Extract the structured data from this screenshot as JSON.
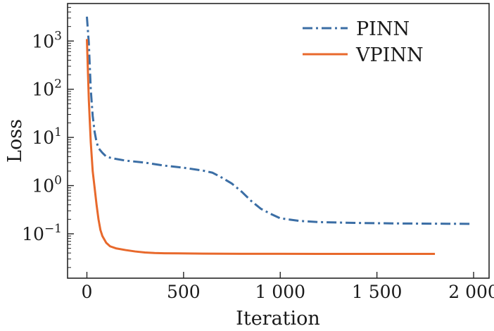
{
  "chart_data": {
    "type": "line",
    "xlabel": "Iteration",
    "ylabel": "Loss",
    "yscale": "log",
    "xlim": [
      -100,
      2080
    ],
    "ylim": [
      0.012,
      6000
    ],
    "grid": false,
    "legend_position": "top-right",
    "x_ticks": [
      {
        "value": 0,
        "label": "0"
      },
      {
        "value": 500,
        "label": "500"
      },
      {
        "value": 1000,
        "label": "1 000"
      },
      {
        "value": 1500,
        "label": "1 500"
      },
      {
        "value": 2000,
        "label": "2 000"
      }
    ],
    "y_ticks": [
      {
        "value": 0.1,
        "base": "10",
        "exp": "−1"
      },
      {
        "value": 1,
        "base": "10",
        "exp": "0"
      },
      {
        "value": 10,
        "base": "10",
        "exp": "1"
      },
      {
        "value": 100,
        "base": "10",
        "exp": "2"
      },
      {
        "value": 1000,
        "base": "10",
        "exp": "3"
      }
    ],
    "series": [
      {
        "name": "PINN",
        "color": "#3b6ea5",
        "style": "dashdot",
        "x": [
          0,
          10,
          20,
          30,
          40,
          50,
          60,
          80,
          100,
          130,
          200,
          300,
          400,
          500,
          600,
          650,
          700,
          750,
          800,
          850,
          900,
          950,
          1000,
          1100,
          1200,
          1400,
          1600,
          1800,
          1980
        ],
        "y": [
          3200,
          900,
          100,
          28,
          13,
          8,
          6,
          4.8,
          4.0,
          3.7,
          3.3,
          3.0,
          2.6,
          2.35,
          2.05,
          1.85,
          1.45,
          1.1,
          0.75,
          0.48,
          0.33,
          0.26,
          0.21,
          0.185,
          0.175,
          0.168,
          0.164,
          0.162,
          0.161
        ]
      },
      {
        "name": "VPINN",
        "color": "#e8692c",
        "style": "solid",
        "x": [
          0,
          10,
          20,
          30,
          40,
          50,
          60,
          70,
          80,
          100,
          120,
          150,
          200,
          250,
          300,
          350,
          400,
          600,
          800,
          1000,
          1200,
          1500,
          1800
        ],
        "y": [
          1100,
          60,
          8,
          2,
          0.9,
          0.4,
          0.2,
          0.12,
          0.09,
          0.065,
          0.055,
          0.05,
          0.046,
          0.043,
          0.041,
          0.04,
          0.0395,
          0.0388,
          0.0385,
          0.0384,
          0.0383,
          0.0383,
          0.0383
        ]
      }
    ]
  }
}
